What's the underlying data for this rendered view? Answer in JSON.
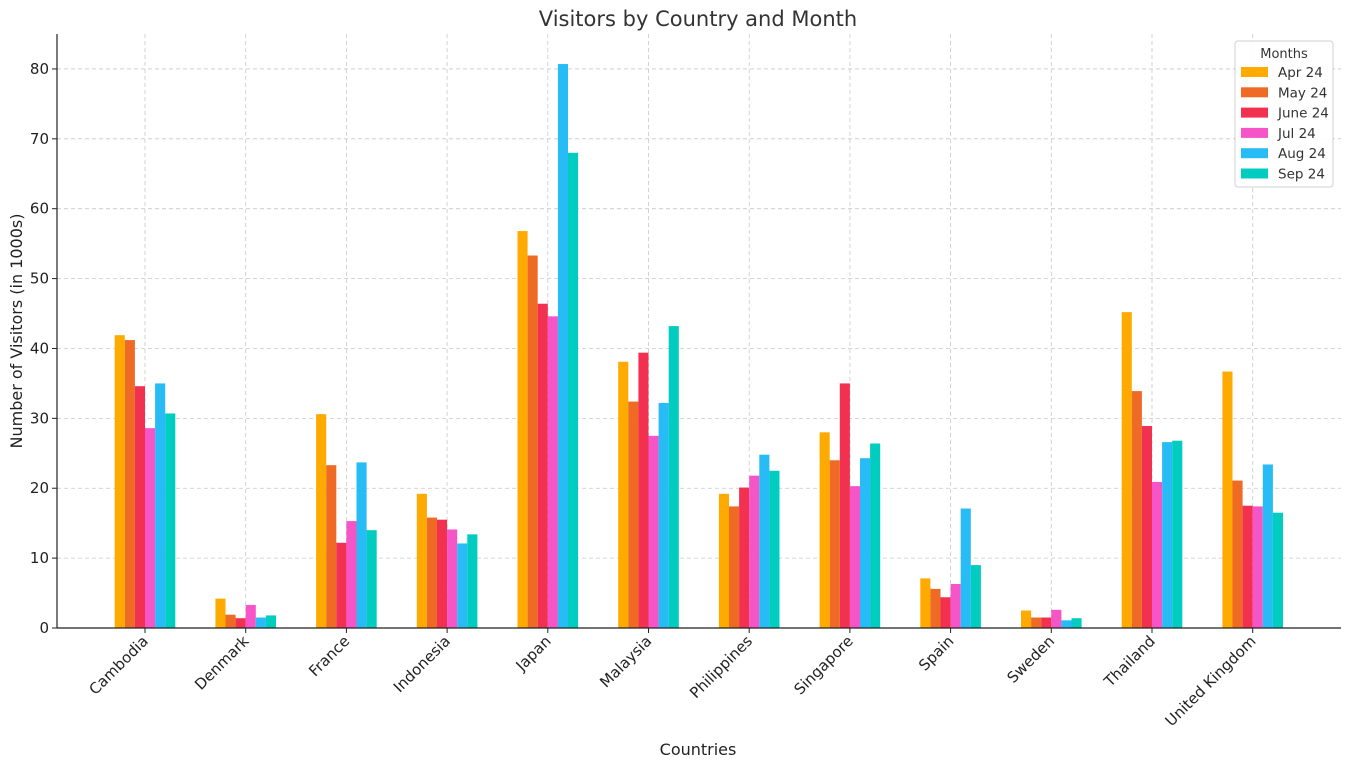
{
  "chart_data": {
    "type": "bar",
    "title": "Visitors by Country and Month",
    "xlabel": "Countries",
    "ylabel": "Number of Visitors (in 1000s)",
    "ylim": [
      0,
      85
    ],
    "yticks": [
      0,
      10,
      20,
      30,
      40,
      50,
      60,
      70,
      80
    ],
    "grid": true,
    "legend": {
      "title": "Months",
      "placement": "top-right"
    },
    "categories": [
      "Cambodia",
      "Denmark",
      "France",
      "Indonesia",
      "Japan",
      "Malaysia",
      "Philippines",
      "Singapore",
      "Spain",
      "Sweden",
      "Thailand",
      "United Kingdom"
    ],
    "series": [
      {
        "name": "Apr 24",
        "color": "#FFAA00",
        "values": [
          41.9,
          4.2,
          30.6,
          19.2,
          56.8,
          38.1,
          19.2,
          28.0,
          7.1,
          2.5,
          45.2,
          36.7
        ]
      },
      {
        "name": "May 24",
        "color": "#EF6A24",
        "values": [
          41.2,
          1.9,
          23.3,
          15.8,
          53.3,
          32.4,
          17.4,
          24.0,
          5.6,
          1.5,
          33.9,
          21.1
        ]
      },
      {
        "name": "June 24",
        "color": "#F2304F",
        "values": [
          34.6,
          1.4,
          12.2,
          15.5,
          46.4,
          39.4,
          20.1,
          35.0,
          4.4,
          1.5,
          28.9,
          17.5
        ]
      },
      {
        "name": "Jul 24",
        "color": "#F655C8",
        "values": [
          28.6,
          3.3,
          15.3,
          14.1,
          44.6,
          27.5,
          21.8,
          20.3,
          6.3,
          2.6,
          20.9,
          17.4
        ]
      },
      {
        "name": "Aug 24",
        "color": "#27BCF5",
        "values": [
          35.0,
          1.5,
          23.7,
          12.1,
          80.7,
          32.2,
          24.8,
          24.3,
          17.1,
          1.1,
          26.6,
          23.4
        ]
      },
      {
        "name": "Sep 24",
        "color": "#00CCC0",
        "values": [
          30.7,
          1.8,
          14.0,
          13.4,
          68.0,
          43.2,
          22.5,
          26.4,
          9.0,
          1.4,
          26.8,
          16.5
        ]
      }
    ]
  }
}
